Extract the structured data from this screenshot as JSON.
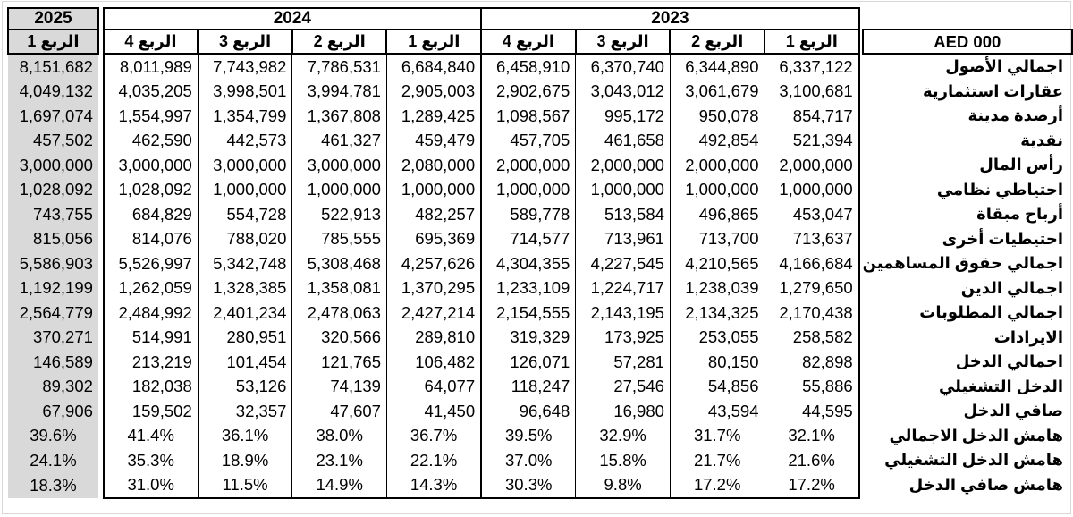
{
  "table": {
    "unit_header": "AED 000",
    "years": [
      {
        "label": "2025",
        "quarters": [
          "الربع 1"
        ]
      },
      {
        "label": "2024",
        "quarters": [
          "الربع 4",
          "الربع 3",
          "الربع 2",
          "الربع 1"
        ]
      },
      {
        "label": "2023",
        "quarters": [
          "الربع 4",
          "الربع 3",
          "الربع 2",
          "الربع 1"
        ]
      }
    ],
    "rows": [
      {
        "label": "اجمالي الأصول",
        "format": "number",
        "values": [
          "8,151,682",
          "8,011,989",
          "7,743,982",
          "7,786,531",
          "6,684,840",
          "6,458,910",
          "6,370,740",
          "6,344,890",
          "6,337,122"
        ]
      },
      {
        "label": "عقارات استثمارية",
        "format": "number",
        "values": [
          "4,049,132",
          "4,035,205",
          "3,998,501",
          "3,994,781",
          "2,905,003",
          "2,902,675",
          "3,043,012",
          "3,061,679",
          "3,100,681"
        ]
      },
      {
        "label": "أرصدة مدينة",
        "format": "number",
        "values": [
          "1,697,074",
          "1,554,997",
          "1,354,799",
          "1,367,808",
          "1,289,425",
          "1,098,567",
          "995,172",
          "950,078",
          "854,717"
        ]
      },
      {
        "label": "نقدية",
        "format": "number",
        "values": [
          "457,502",
          "462,590",
          "442,573",
          "461,327",
          "459,479",
          "457,705",
          "461,658",
          "492,854",
          "521,394"
        ]
      },
      {
        "label": "رأس المال",
        "format": "number",
        "values": [
          "3,000,000",
          "3,000,000",
          "3,000,000",
          "3,000,000",
          "2,080,000",
          "2,000,000",
          "2,000,000",
          "2,000,000",
          "2,000,000"
        ]
      },
      {
        "label": "احتياطي نظامي",
        "format": "number",
        "values": [
          "1,028,092",
          "1,028,092",
          "1,000,000",
          "1,000,000",
          "1,000,000",
          "1,000,000",
          "1,000,000",
          "1,000,000",
          "1,000,000"
        ]
      },
      {
        "label": "أرباح مبقاة",
        "format": "number",
        "values": [
          "743,755",
          "684,829",
          "554,728",
          "522,913",
          "482,257",
          "589,778",
          "513,584",
          "496,865",
          "453,047"
        ]
      },
      {
        "label": "احتيطيات أخرى",
        "format": "number",
        "values": [
          "815,056",
          "814,076",
          "788,020",
          "785,555",
          "695,369",
          "714,577",
          "713,961",
          "713,700",
          "713,637"
        ]
      },
      {
        "label": "اجمالي حقوق المساهمين",
        "format": "number",
        "values": [
          "5,586,903",
          "5,526,997",
          "5,342,748",
          "5,308,468",
          "4,257,626",
          "4,304,355",
          "4,227,545",
          "4,210,565",
          "4,166,684"
        ]
      },
      {
        "label": "اجمالي الدين",
        "format": "number",
        "values": [
          "1,192,199",
          "1,262,059",
          "1,328,385",
          "1,358,081",
          "1,370,295",
          "1,233,109",
          "1,224,717",
          "1,238,039",
          "1,279,650"
        ]
      },
      {
        "label": "اجمالي المطلوبات",
        "format": "number",
        "values": [
          "2,564,779",
          "2,484,992",
          "2,401,234",
          "2,478,063",
          "2,427,214",
          "2,154,555",
          "2,143,195",
          "2,134,325",
          "2,170,438"
        ]
      },
      {
        "label": "الايرادات",
        "format": "number",
        "values": [
          "370,271",
          "514,991",
          "280,951",
          "320,566",
          "289,810",
          "319,329",
          "173,925",
          "253,055",
          "258,582"
        ]
      },
      {
        "label": "اجمالي الدخل",
        "format": "number",
        "values": [
          "146,589",
          "213,219",
          "101,454",
          "121,765",
          "106,482",
          "126,071",
          "57,281",
          "80,150",
          "82,898"
        ]
      },
      {
        "label": "الدخل التشغيلي",
        "format": "number",
        "values": [
          "89,302",
          "182,038",
          "53,126",
          "74,139",
          "64,077",
          "118,247",
          "27,546",
          "54,856",
          "55,886"
        ]
      },
      {
        "label": "صافي الدخل",
        "format": "number",
        "values": [
          "67,906",
          "159,502",
          "32,357",
          "47,607",
          "41,450",
          "96,648",
          "16,980",
          "43,594",
          "44,595"
        ]
      },
      {
        "label": "هامش الدخل الاجمالي",
        "format": "percent",
        "values": [
          "39.6%",
          "41.4%",
          "36.1%",
          "38.0%",
          "36.7%",
          "39.5%",
          "32.9%",
          "31.7%",
          "32.1%"
        ]
      },
      {
        "label": "هامش الدخل التشغيلي",
        "format": "percent",
        "values": [
          "24.1%",
          "35.3%",
          "18.9%",
          "23.1%",
          "22.1%",
          "37.0%",
          "15.8%",
          "21.7%",
          "21.6%"
        ]
      },
      {
        "label": "هامش صافي الدخل",
        "format": "percent",
        "values": [
          "18.3%",
          "31.0%",
          "11.5%",
          "14.9%",
          "14.3%",
          "30.3%",
          "9.8%",
          "17.2%",
          "17.2%"
        ]
      }
    ]
  },
  "colors": {
    "highlight_bg": "#d9d9d9",
    "table_border": "#000000",
    "page_frame": "#d8d8d8"
  }
}
